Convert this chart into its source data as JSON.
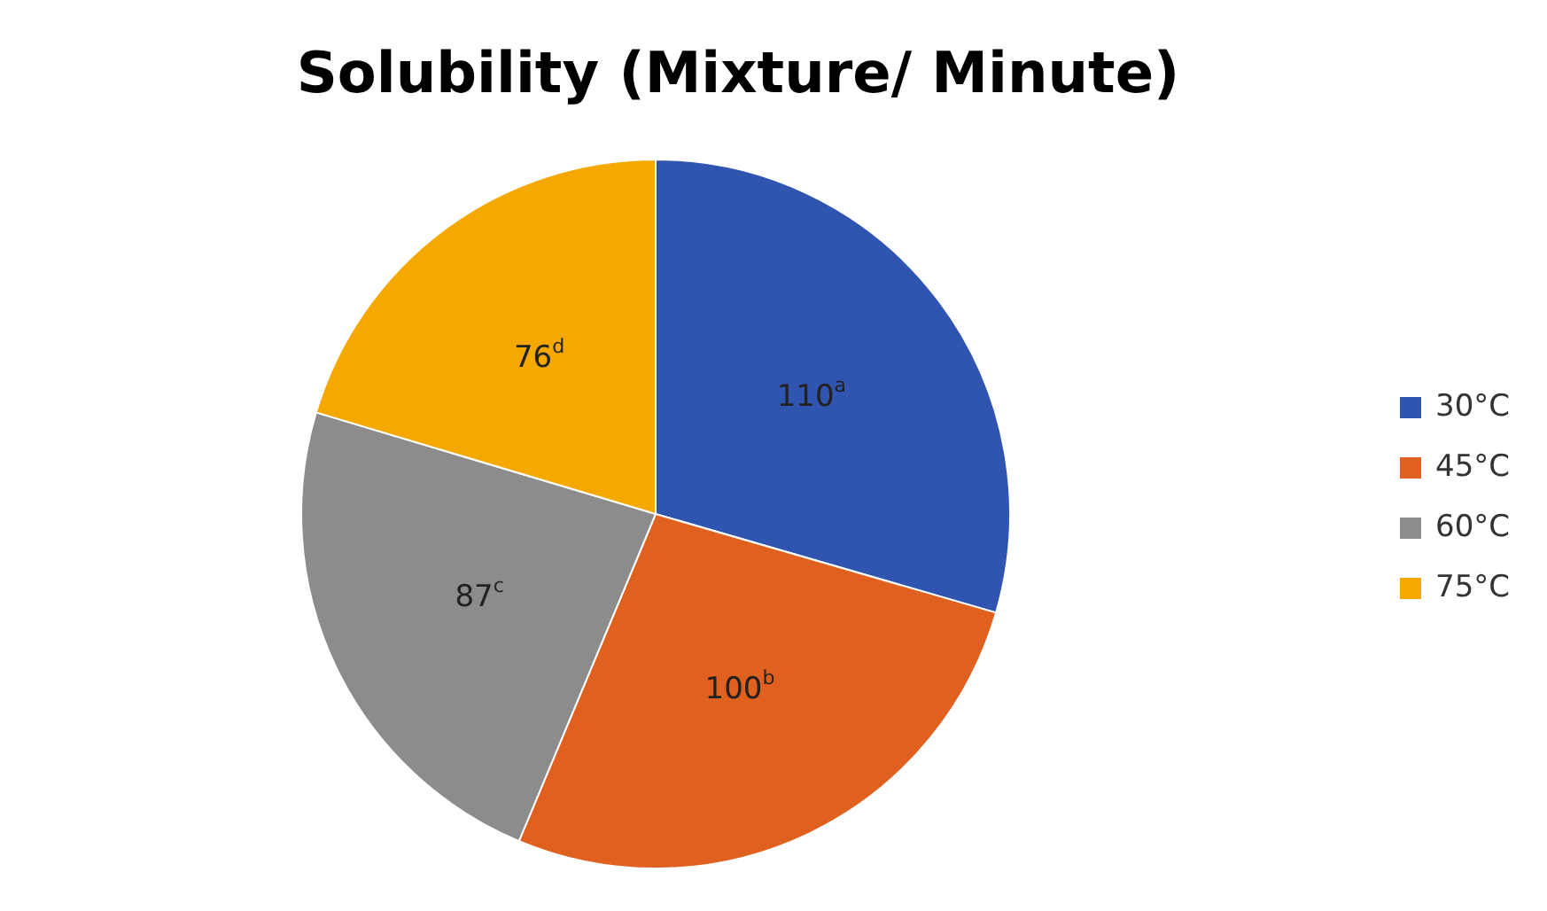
{
  "chart_data": {
    "type": "pie",
    "title": "Solubility (Mixture/ Minute)",
    "categories": [
      "30°C",
      "45°C",
      "60°C",
      "75°C"
    ],
    "values": [
      110,
      100,
      87,
      76
    ],
    "colors": [
      "#2f55b0",
      "#e06020",
      "#8c8c8c",
      "#f5a800"
    ],
    "value_labels": [
      "110$^{a}$",
      "100$^{b}$",
      "87$^{c}$",
      "76$^{d}$"
    ],
    "legend": "right"
  }
}
